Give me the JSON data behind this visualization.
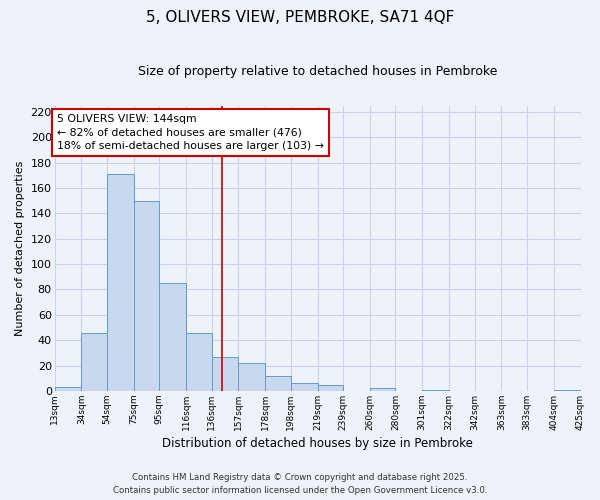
{
  "title": "5, OLIVERS VIEW, PEMBROKE, SA71 4QF",
  "subtitle": "Size of property relative to detached houses in Pembroke",
  "xlabel": "Distribution of detached houses by size in Pembroke",
  "ylabel": "Number of detached properties",
  "bins": [
    13,
    34,
    54,
    75,
    95,
    116,
    136,
    157,
    178,
    198,
    219,
    239,
    260,
    280,
    301,
    322,
    342,
    363,
    383,
    404,
    425
  ],
  "counts": [
    3,
    46,
    171,
    150,
    85,
    46,
    27,
    22,
    12,
    6,
    5,
    0,
    2,
    0,
    1,
    0,
    0,
    0,
    0,
    1
  ],
  "bar_color": "#c8d8ee",
  "bar_edge_color": "#6699cc",
  "vline_x": 144,
  "vline_color": "#cc0000",
  "annotation_title": "5 OLIVERS VIEW: 144sqm",
  "annotation_line1": "← 82% of detached houses are smaller (476)",
  "annotation_line2": "18% of semi-detached houses are larger (103) →",
  "annotation_box_color": "white",
  "annotation_box_edge": "#cc0000",
  "ylim": [
    0,
    225
  ],
  "yticks": [
    0,
    20,
    40,
    60,
    80,
    100,
    120,
    140,
    160,
    180,
    200,
    220
  ],
  "tick_labels": [
    "13sqm",
    "34sqm",
    "54sqm",
    "75sqm",
    "95sqm",
    "116sqm",
    "136sqm",
    "157sqm",
    "178sqm",
    "198sqm",
    "219sqm",
    "239sqm",
    "260sqm",
    "280sqm",
    "301sqm",
    "322sqm",
    "342sqm",
    "363sqm",
    "383sqm",
    "404sqm",
    "425sqm"
  ],
  "footnote1": "Contains HM Land Registry data © Crown copyright and database right 2025.",
  "footnote2": "Contains public sector information licensed under the Open Government Licence v3.0.",
  "grid_color": "#c8d4e8",
  "background_color": "#eef2fa"
}
